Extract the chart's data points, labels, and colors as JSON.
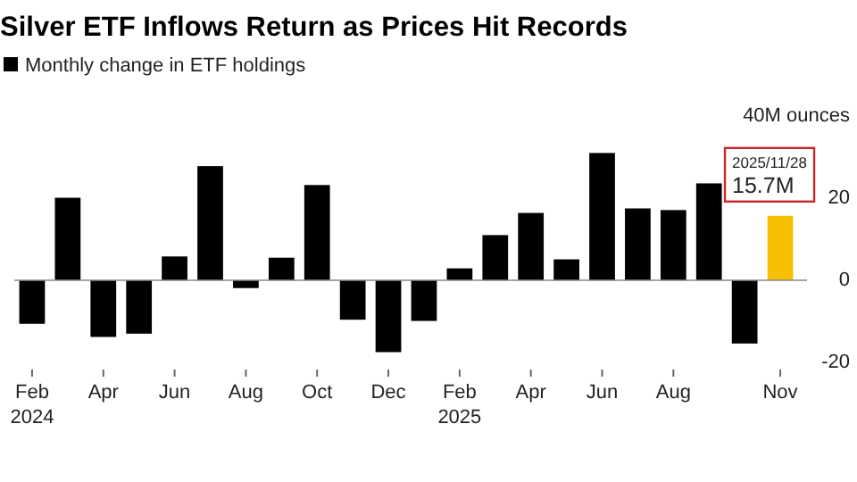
{
  "chart_data": {
    "type": "bar",
    "title": "Silver ETF Inflows Return as Prices Hit Records",
    "categories": [
      "Feb\n2024",
      null,
      "Apr",
      null,
      "Jun",
      null,
      "Aug",
      null,
      "Oct",
      null,
      "Dec",
      null,
      "Feb\n2025",
      null,
      "Apr",
      null,
      "Jun",
      null,
      "Aug",
      null,
      null,
      "Nov"
    ],
    "series": [
      {
        "name": "Monthly change in ETF holdings",
        "color": "#000000",
        "colors": [
          "#000000",
          "#000000",
          "#000000",
          "#000000",
          "#000000",
          "#000000",
          "#000000",
          "#000000",
          "#000000",
          "#000000",
          "#000000",
          "#000000",
          "#000000",
          "#000000",
          "#000000",
          "#000000",
          "#000000",
          "#000000",
          "#000000",
          "#000000",
          "#000000",
          "#f5c000"
        ],
        "values": [
          -10.6,
          20.1,
          -13.8,
          -13.0,
          5.8,
          27.8,
          -1.9,
          5.5,
          23.2,
          -9.6,
          -17.5,
          -9.9,
          2.9,
          11.0,
          16.4,
          5.1,
          31.0,
          17.5,
          17.1,
          23.6,
          -15.4,
          15.7
        ]
      }
    ],
    "ylim": [
      -20,
      40
    ],
    "yticks": [
      {
        "value": 40,
        "label": "40M ounces"
      },
      20,
      0,
      -20
    ],
    "annotations": [
      {
        "text": "2025/11/28",
        "x": "Nov",
        "y": 15.7
      },
      {
        "text": "15.7M",
        "x": "Nov",
        "y": 15.7
      }
    ],
    "legend": "top left"
  }
}
